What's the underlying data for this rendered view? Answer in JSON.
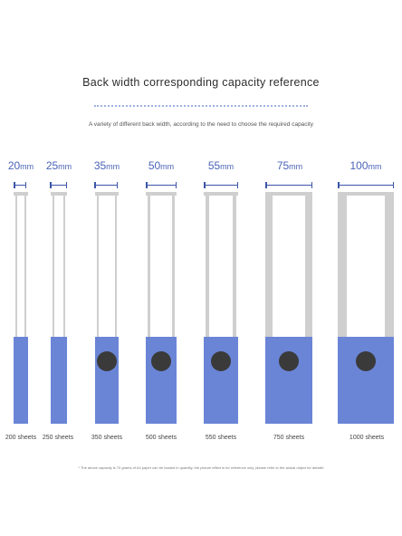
{
  "title": "Back width corresponding capacity reference",
  "subtitle": "A variety of different back width, according to the need to choose the required capacity",
  "binders": [
    {
      "width_value": "20",
      "unit": "mm",
      "sheets": "200 sheets",
      "hole": false
    },
    {
      "width_value": "25",
      "unit": "mm",
      "sheets": "250 sheets",
      "hole": false
    },
    {
      "width_value": "35",
      "unit": "mm",
      "sheets": "350 sheets",
      "hole": true
    },
    {
      "width_value": "50",
      "unit": "mm",
      "sheets": "500 sheets",
      "hole": true
    },
    {
      "width_value": "55",
      "unit": "mm",
      "sheets": "550 sheets",
      "hole": true
    },
    {
      "width_value": "75",
      "unit": "mm",
      "sheets": "750 sheets",
      "hole": true
    },
    {
      "width_value": "100",
      "unit": "mm",
      "sheets": "1000 sheets",
      "hole": true
    }
  ],
  "footnote": "* The above capacity is 70 grams of A4 paper can be loaded in quantity, the picture effect is for reference only, please refer to the actual object for details!",
  "colors": {
    "accent": "#6a85d6",
    "label": "#4a63b8",
    "spine_edge": "#cfcfcf",
    "hole": "#3a3a3a"
  }
}
